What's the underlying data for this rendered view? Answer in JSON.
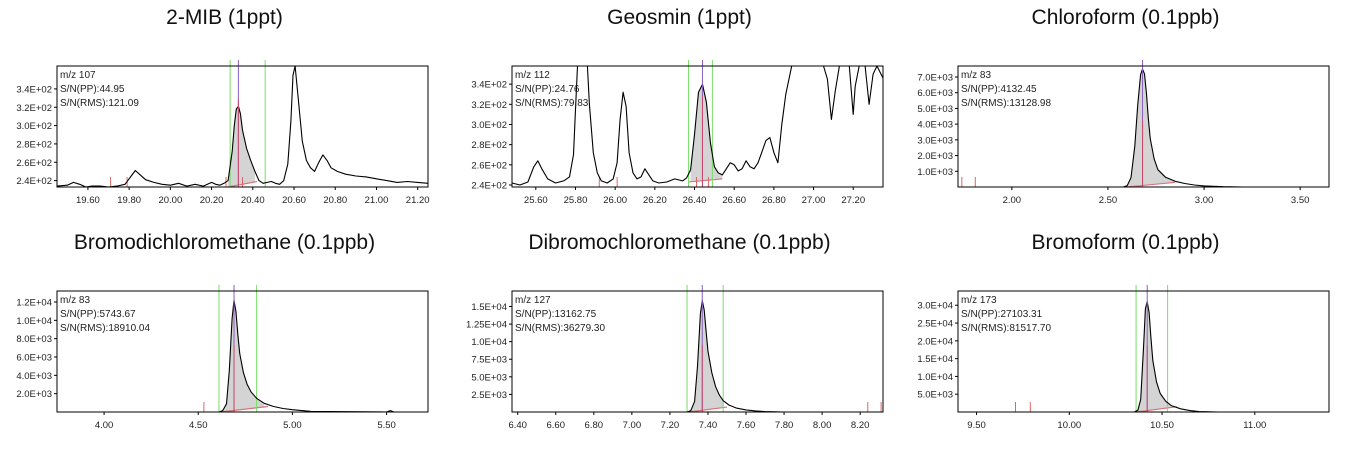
{
  "chart_data": [
    {
      "type": "line",
      "title": "2-MIB (1ppt)",
      "info": [
        "m/z 107",
        "S/N(PP):44.95",
        "S/N(RMS):121.09"
      ],
      "xlim": [
        19.45,
        21.25
      ],
      "ylim": [
        233,
        365
      ],
      "xticks": [
        19.6,
        19.8,
        20.0,
        20.2,
        20.4,
        20.6,
        20.8,
        21.0,
        21.2
      ],
      "yticks": [
        240,
        260,
        280,
        300,
        320,
        340
      ],
      "ytick_labels": [
        "2.4E+02",
        "2.6E+02",
        "2.8E+02",
        "3.0E+02",
        "3.2E+02",
        "3.4E+02"
      ],
      "peak_rt": 20.33,
      "green_lines": [
        20.29,
        20.46
      ],
      "red_ticks": [
        19.71,
        19.79,
        20.27,
        20.35
      ],
      "baseline": [
        [
          20.28,
          233
        ],
        [
          20.42,
          239
        ]
      ],
      "shade": [
        20.28,
        20.42
      ],
      "trace": [
        [
          19.45,
          234
        ],
        [
          19.5,
          235
        ],
        [
          19.53,
          238
        ],
        [
          19.56,
          236
        ],
        [
          19.59,
          232
        ],
        [
          19.62,
          234
        ],
        [
          19.66,
          234
        ],
        [
          19.7,
          233
        ],
        [
          19.74,
          234
        ],
        [
          19.78,
          236
        ],
        [
          19.81,
          245
        ],
        [
          19.83,
          251
        ],
        [
          19.85,
          247
        ],
        [
          19.88,
          241
        ],
        [
          19.92,
          238
        ],
        [
          19.96,
          236
        ],
        [
          20.0,
          235
        ],
        [
          20.04,
          237
        ],
        [
          20.08,
          234
        ],
        [
          20.12,
          236
        ],
        [
          20.16,
          234
        ],
        [
          20.2,
          238
        ],
        [
          20.22,
          236
        ],
        [
          20.24,
          235
        ],
        [
          20.26,
          237
        ],
        [
          20.28,
          240
        ],
        [
          20.3,
          272
        ],
        [
          20.31,
          300
        ],
        [
          20.32,
          318
        ],
        [
          20.33,
          321
        ],
        [
          20.34,
          313
        ],
        [
          20.35,
          295
        ],
        [
          20.37,
          275
        ],
        [
          20.39,
          262
        ],
        [
          20.41,
          250
        ],
        [
          20.43,
          240
        ],
        [
          20.45,
          237
        ],
        [
          20.47,
          238
        ],
        [
          20.49,
          239
        ],
        [
          20.51,
          237
        ],
        [
          20.53,
          236
        ],
        [
          20.55,
          240
        ],
        [
          20.57,
          258
        ],
        [
          20.585,
          305
        ],
        [
          20.595,
          355
        ],
        [
          20.605,
          365
        ],
        [
          20.62,
          330
        ],
        [
          20.64,
          283
        ],
        [
          20.66,
          262
        ],
        [
          20.68,
          254
        ],
        [
          20.7,
          250
        ],
        [
          20.72,
          260
        ],
        [
          20.74,
          268
        ],
        [
          20.76,
          262
        ],
        [
          20.78,
          254
        ],
        [
          20.81,
          250
        ],
        [
          20.85,
          247
        ],
        [
          20.9,
          245
        ],
        [
          20.95,
          244
        ],
        [
          21.0,
          242
        ],
        [
          21.05,
          240
        ],
        [
          21.1,
          238
        ],
        [
          21.15,
          239
        ],
        [
          21.2,
          238
        ],
        [
          21.25,
          237
        ]
      ]
    },
    {
      "type": "line",
      "title": "Geosmin (1ppt)",
      "info": [
        "m/z 112",
        "S/N(PP):24.76",
        "S/N(RMS):79.83"
      ],
      "xlim": [
        25.48,
        27.35
      ],
      "ylim": [
        238,
        358
      ],
      "xticks": [
        25.6,
        25.8,
        26.0,
        26.2,
        26.4,
        26.6,
        26.8,
        27.0,
        27.2
      ],
      "yticks": [
        240,
        260,
        280,
        300,
        320,
        340
      ],
      "ytick_labels": [
        "2.4E+02",
        "2.6E+02",
        "2.8E+02",
        "3.0E+02",
        "3.2E+02",
        "3.4E+02"
      ],
      "peak_rt": 26.44,
      "green_lines": [
        26.37,
        26.49
      ],
      "red_ticks": [
        25.92,
        26.01,
        26.41,
        26.47
      ],
      "baseline": [
        [
          26.37,
          243
        ],
        [
          26.54,
          246
        ]
      ],
      "shade": [
        26.37,
        26.54
      ],
      "trace": [
        [
          25.48,
          242
        ],
        [
          25.52,
          240
        ],
        [
          25.56,
          243
        ],
        [
          25.59,
          258
        ],
        [
          25.61,
          264
        ],
        [
          25.63,
          256
        ],
        [
          25.66,
          246
        ],
        [
          25.7,
          242
        ],
        [
          25.74,
          244
        ],
        [
          25.77,
          248
        ],
        [
          25.79,
          270
        ],
        [
          25.8,
          315
        ],
        [
          25.81,
          358
        ],
        [
          25.86,
          358
        ],
        [
          25.87,
          320
        ],
        [
          25.89,
          272
        ],
        [
          25.91,
          252
        ],
        [
          25.93,
          244
        ],
        [
          25.96,
          242
        ],
        [
          25.99,
          246
        ],
        [
          26.01,
          262
        ],
        [
          26.025,
          305
        ],
        [
          26.04,
          332
        ],
        [
          26.055,
          318
        ],
        [
          26.07,
          272
        ],
        [
          26.09,
          252
        ],
        [
          26.11,
          246
        ],
        [
          26.13,
          248
        ],
        [
          26.15,
          256
        ],
        [
          26.17,
          250
        ],
        [
          26.19,
          244
        ],
        [
          26.22,
          242
        ],
        [
          26.26,
          243
        ],
        [
          26.3,
          246
        ],
        [
          26.34,
          244
        ],
        [
          26.36,
          247
        ],
        [
          26.38,
          255
        ],
        [
          26.4,
          290
        ],
        [
          26.42,
          332
        ],
        [
          26.44,
          340
        ],
        [
          26.46,
          322
        ],
        [
          26.48,
          282
        ],
        [
          26.5,
          258
        ],
        [
          26.52,
          252
        ],
        [
          26.54,
          250
        ],
        [
          26.56,
          256
        ],
        [
          26.58,
          262
        ],
        [
          26.6,
          260
        ],
        [
          26.62,
          254
        ],
        [
          26.64,
          256
        ],
        [
          26.66,
          264
        ],
        [
          26.68,
          258
        ],
        [
          26.7,
          256
        ],
        [
          26.72,
          262
        ],
        [
          26.74,
          273
        ],
        [
          26.76,
          284
        ],
        [
          26.78,
          287
        ],
        [
          26.8,
          272
        ],
        [
          26.82,
          262
        ],
        [
          26.84,
          300
        ],
        [
          26.86,
          330
        ],
        [
          26.89,
          358
        ],
        [
          27.05,
          358
        ],
        [
          27.07,
          345
        ],
        [
          27.09,
          305
        ],
        [
          27.11,
          334
        ],
        [
          27.13,
          358
        ],
        [
          27.18,
          358
        ],
        [
          27.2,
          310
        ],
        [
          27.21,
          338
        ],
        [
          27.23,
          358
        ],
        [
          27.26,
          358
        ],
        [
          27.28,
          320
        ],
        [
          27.3,
          350
        ],
        [
          27.32,
          358
        ],
        [
          27.35,
          346
        ]
      ]
    },
    {
      "type": "line",
      "title": "Chloroform (0.1ppb)",
      "info": [
        "m/z 83",
        "S/N(PP):4132.45",
        "S/N(RMS):13128.98"
      ],
      "xlim": [
        1.72,
        3.65
      ],
      "ylim": [
        0,
        7700
      ],
      "xticks": [
        2.0,
        2.5,
        3.0,
        3.5
      ],
      "yticks": [
        1000,
        2000,
        3000,
        4000,
        5000,
        6000,
        7000
      ],
      "ytick_labels": [
        "1.0E+03",
        "2.0E+03",
        "3.0E+03",
        "4.0E+03",
        "5.0E+03",
        "6.0E+03",
        "7.0E+03"
      ],
      "peak_rt": 2.68,
      "green_lines": [],
      "red_ticks": [
        1.74,
        1.81
      ],
      "baseline": [
        [
          2.6,
          0
        ],
        [
          2.85,
          300
        ]
      ],
      "shade": [
        2.6,
        2.85
      ],
      "trace": [
        [
          2.55,
          0
        ],
        [
          2.58,
          0
        ],
        [
          2.6,
          80
        ],
        [
          2.62,
          600
        ],
        [
          2.64,
          2600
        ],
        [
          2.655,
          5200
        ],
        [
          2.67,
          7150
        ],
        [
          2.68,
          7500
        ],
        [
          2.69,
          7200
        ],
        [
          2.7,
          6000
        ],
        [
          2.71,
          4400
        ],
        [
          2.72,
          3100
        ],
        [
          2.74,
          1800
        ],
        [
          2.76,
          1100
        ],
        [
          2.8,
          620
        ],
        [
          2.85,
          360
        ],
        [
          2.9,
          220
        ],
        [
          2.95,
          130
        ],
        [
          3.0,
          70
        ],
        [
          3.1,
          20
        ],
        [
          3.2,
          0
        ]
      ]
    },
    {
      "type": "line",
      "title": "Bromodichloromethane (0.1ppb)",
      "info": [
        "m/z 83",
        "S/N(PP):5743.67",
        "S/N(RMS):18910.04"
      ],
      "xlim": [
        3.75,
        5.72
      ],
      "ylim": [
        0,
        13200
      ],
      "xticks": [
        4.0,
        4.5,
        5.0,
        5.5
      ],
      "yticks": [
        2000,
        4000,
        6000,
        8000,
        10000,
        12000
      ],
      "ytick_labels": [
        "2.0E+03",
        "4.0E+03",
        "6.0E+03",
        "8.0E+03",
        "1.0E+04",
        "1.2E+04"
      ],
      "peak_rt": 4.69,
      "green_lines": [
        4.61,
        4.81
      ],
      "red_ticks": [
        4.53,
        4.69
      ],
      "baseline": [
        [
          4.62,
          0
        ],
        [
          4.87,
          600
        ]
      ],
      "shade": [
        4.62,
        4.87
      ],
      "trace": [
        [
          4.58,
          0
        ],
        [
          4.61,
          0
        ],
        [
          4.63,
          150
        ],
        [
          4.65,
          900
        ],
        [
          4.665,
          4500
        ],
        [
          4.68,
          10200
        ],
        [
          4.69,
          12200
        ],
        [
          4.7,
          11000
        ],
        [
          4.71,
          8500
        ],
        [
          4.72,
          6400
        ],
        [
          4.74,
          4300
        ],
        [
          4.76,
          3000
        ],
        [
          4.78,
          2200
        ],
        [
          4.81,
          1500
        ],
        [
          4.85,
          950
        ],
        [
          4.9,
          600
        ],
        [
          4.95,
          380
        ],
        [
          5.0,
          250
        ],
        [
          5.05,
          150
        ],
        [
          5.1,
          60
        ],
        [
          5.5,
          0
        ],
        [
          5.52,
          150
        ],
        [
          5.54,
          0
        ]
      ]
    },
    {
      "type": "line",
      "title": "Dibromochloromethane (0.1ppb)",
      "info": [
        "m/z 127",
        "S/N(PP):13162.75",
        "S/N(RMS):36279.30"
      ],
      "xlim": [
        6.37,
        8.32
      ],
      "ylim": [
        0,
        17200
      ],
      "xticks": [
        6.4,
        6.6,
        6.8,
        7.0,
        7.2,
        7.4,
        7.6,
        7.8,
        8.0,
        8.2
      ],
      "yticks": [
        2500,
        5000,
        7500,
        10000,
        12500,
        15000
      ],
      "ytick_labels": [
        "2.5E+03",
        "5.0E+03",
        "7.5E+03",
        "1.0E+04",
        "1.25E+04",
        "1.5E+04"
      ],
      "peak_rt": 7.37,
      "green_lines": [
        7.29,
        7.48
      ],
      "red_ticks": [
        8.24,
        8.31
      ],
      "baseline": [
        [
          7.3,
          0
        ],
        [
          7.5,
          700
        ]
      ],
      "shade": [
        7.3,
        7.5
      ],
      "trace": [
        [
          7.26,
          0
        ],
        [
          7.29,
          0
        ],
        [
          7.31,
          200
        ],
        [
          7.33,
          1500
        ],
        [
          7.345,
          6500
        ],
        [
          7.36,
          14000
        ],
        [
          7.37,
          15800
        ],
        [
          7.38,
          14500
        ],
        [
          7.39,
          11500
        ],
        [
          7.4,
          8600
        ],
        [
          7.42,
          5600
        ],
        [
          7.44,
          3600
        ],
        [
          7.46,
          2400
        ],
        [
          7.48,
          1600
        ],
        [
          7.51,
          1000
        ],
        [
          7.55,
          550
        ],
        [
          7.6,
          300
        ],
        [
          7.65,
          150
        ],
        [
          7.7,
          60
        ],
        [
          7.8,
          0
        ]
      ]
    },
    {
      "type": "line",
      "title": "Bromoform (0.1ppb)",
      "info": [
        "m/z 173",
        "S/N(PP):27103.31",
        "S/N(RMS):81517.70"
      ],
      "xlim": [
        9.4,
        11.4
      ],
      "ylim": [
        0,
        34000
      ],
      "xticks": [
        9.5,
        10.0,
        10.5,
        11.0
      ],
      "yticks": [
        5000,
        10000,
        15000,
        20000,
        25000,
        30000
      ],
      "ytick_labels": [
        "5.0E+03",
        "1.0E+04",
        "1.5E+04",
        "2.0E+04",
        "2.5E+04",
        "3.0E+04"
      ],
      "peak_rt": 10.42,
      "green_lines": [
        10.36,
        10.53
      ],
      "red_ticks": [
        9.71,
        9.79
      ],
      "baseline": [
        [
          10.36,
          0
        ],
        [
          10.58,
          1500
        ]
      ],
      "shade": [
        10.36,
        10.58
      ],
      "trace": [
        [
          10.3,
          0
        ],
        [
          10.35,
          0
        ],
        [
          10.37,
          500
        ],
        [
          10.385,
          3500
        ],
        [
          10.4,
          18000
        ],
        [
          10.41,
          29000
        ],
        [
          10.42,
          31000
        ],
        [
          10.43,
          28000
        ],
        [
          10.44,
          21000
        ],
        [
          10.45,
          14500
        ],
        [
          10.47,
          8500
        ],
        [
          10.49,
          5200
        ],
        [
          10.52,
          3000
        ],
        [
          10.55,
          1800
        ],
        [
          10.6,
          900
        ],
        [
          10.65,
          400
        ],
        [
          10.7,
          150
        ],
        [
          10.8,
          0
        ]
      ]
    }
  ]
}
